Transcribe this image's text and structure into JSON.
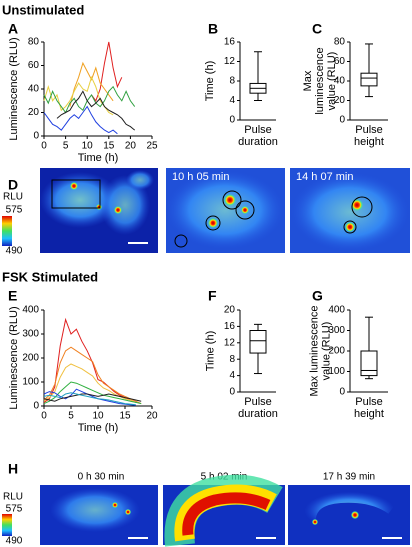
{
  "headers": [
    "Unstimulated",
    "FSK Stimulated"
  ],
  "panel_labels": [
    "A",
    "B",
    "C",
    "D",
    "E",
    "F",
    "G",
    "H"
  ],
  "images": {
    "D": {
      "colorbar": {
        "title": "RLU",
        "max": 575,
        "min": 490
      },
      "timestamps": [
        "10 h 05 min",
        "14 h 07 min"
      ]
    },
    "H": {
      "colorbar": {
        "title": "RLU",
        "max": 575,
        "min": 490
      },
      "timestamps": [
        "0 h 30 min",
        "5 h 02 min",
        "17 h 39 min"
      ]
    }
  },
  "chart_data": [
    {
      "type": "line",
      "x_label": "Time (h)",
      "y_label": "Luminescence (RLU)",
      "x": [
        0,
        1,
        2,
        3,
        4,
        5,
        6,
        7,
        8,
        9,
        10,
        11,
        12,
        13,
        14,
        15,
        16,
        17,
        18,
        19,
        20,
        21,
        22
      ],
      "xlim": [
        0,
        25
      ],
      "xticks": [
        0,
        5,
        10,
        15,
        20,
        25
      ],
      "ylim": [
        0,
        80
      ],
      "yticks": [
        0,
        20,
        40,
        60,
        80
      ],
      "series": [
        {
          "color": "#e02020",
          "values": [
            null,
            null,
            null,
            null,
            null,
            null,
            null,
            null,
            null,
            null,
            null,
            35,
            30,
            40,
            62,
            80,
            58,
            42,
            50,
            null,
            null,
            null,
            null
          ]
        },
        {
          "color": "#f0a020",
          "values": [
            null,
            null,
            null,
            null,
            null,
            null,
            25,
            40,
            50,
            62,
            55,
            48,
            58,
            45,
            40,
            35,
            30,
            null,
            null,
            null,
            null,
            null,
            null
          ]
        },
        {
          "color": "#e8d040",
          "values": [
            30,
            42,
            30,
            35,
            22,
            25,
            30,
            38,
            45,
            40,
            38,
            50,
            42,
            30,
            25,
            20,
            18,
            null,
            null,
            null,
            null,
            null,
            null
          ]
        },
        {
          "color": "#30a040",
          "values": [
            35,
            28,
            38,
            30,
            25,
            20,
            28,
            32,
            25,
            22,
            30,
            35,
            28,
            25,
            30,
            38,
            42,
            35,
            30,
            38,
            30,
            25,
            null
          ]
        },
        {
          "color": "#202020",
          "values": [
            null,
            null,
            null,
            15,
            18,
            20,
            22,
            28,
            32,
            38,
            30,
            25,
            28,
            32,
            25,
            22,
            20,
            18,
            15,
            10,
            8,
            5,
            null
          ]
        },
        {
          "color": "#2040e0",
          "values": [
            20,
            15,
            10,
            8,
            5,
            10,
            15,
            18,
            15,
            20,
            25,
            18,
            12,
            8,
            5,
            3,
            5,
            2,
            null,
            null,
            null,
            null,
            null
          ]
        }
      ]
    },
    {
      "type": "box",
      "y_label": "Time (h)",
      "categories": [
        "Pulse duration"
      ],
      "ylim": [
        0,
        16
      ],
      "yticks": [
        0,
        4,
        8,
        12,
        16
      ],
      "min": [
        4
      ],
      "q1": [
        5.5
      ],
      "median": [
        6.5
      ],
      "q3": [
        7.5
      ],
      "max": [
        14
      ]
    },
    {
      "type": "box",
      "y_label": "Max luminescence value (RLU)",
      "categories": [
        "Pulse height"
      ],
      "ylim": [
        0,
        80
      ],
      "yticks": [
        0,
        20,
        40,
        60,
        80
      ],
      "min": [
        24
      ],
      "q1": [
        35
      ],
      "median": [
        43
      ],
      "q3": [
        48
      ],
      "max": [
        78
      ]
    },
    {
      "type": "line",
      "x_label": "Time (h)",
      "y_label": "Luminescence (RLU)",
      "x": [
        0,
        1,
        2,
        3,
        4,
        5,
        6,
        7,
        8,
        9,
        10,
        11,
        12,
        13,
        14,
        15,
        16,
        17,
        18
      ],
      "xlim": [
        0,
        20
      ],
      "xticks": [
        0,
        5,
        10,
        15,
        20
      ],
      "ylim": [
        0,
        400
      ],
      "yticks": [
        0,
        100,
        200,
        300,
        400
      ],
      "series": [
        {
          "color": "#e02020",
          "values": [
            15,
            30,
            80,
            250,
            360,
            300,
            320,
            270,
            230,
            180,
            110,
            100,
            80,
            60,
            45,
            35,
            25,
            15,
            null
          ]
        },
        {
          "color": "#f08020",
          "values": [
            25,
            45,
            90,
            180,
            230,
            245,
            230,
            215,
            200,
            185,
            130,
            95,
            80,
            65,
            50,
            40,
            30,
            20,
            10
          ]
        },
        {
          "color": "#f0c040",
          "values": [
            20,
            35,
            60,
            120,
            160,
            175,
            165,
            155,
            140,
            125,
            95,
            75,
            65,
            50,
            40,
            30,
            25,
            15,
            null
          ]
        },
        {
          "color": "#30b040",
          "values": [
            10,
            20,
            35,
            60,
            80,
            100,
            95,
            85,
            75,
            65,
            55,
            45,
            40,
            35,
            30,
            25,
            20,
            15,
            10
          ]
        },
        {
          "color": "#2040e0",
          "values": [
            50,
            60,
            55,
            40,
            30,
            45,
            70,
            60,
            50,
            40,
            30,
            25,
            20,
            15,
            10,
            8,
            5,
            3,
            null
          ]
        },
        {
          "color": "#202020",
          "values": [
            30,
            25,
            20,
            30,
            35,
            40,
            45,
            50,
            50,
            45,
            40,
            45,
            50,
            45,
            40,
            35,
            30,
            25,
            20
          ]
        },
        {
          "color": "#20a0c0",
          "values": [
            40,
            45,
            40,
            35,
            50,
            55,
            50,
            45,
            40,
            35,
            30,
            28,
            25,
            20,
            15,
            10,
            8,
            5,
            null
          ]
        }
      ]
    },
    {
      "type": "box",
      "y_label": "Time (h)",
      "categories": [
        "Pulse duration"
      ],
      "ylim": [
        0,
        20
      ],
      "yticks": [
        0,
        4,
        8,
        12,
        16,
        20
      ],
      "min": [
        4.5
      ],
      "q1": [
        9.5
      ],
      "median": [
        12.5
      ],
      "q3": [
        15
      ],
      "max": [
        16.5
      ]
    },
    {
      "type": "box",
      "y_label": "Max luminescence value (RLU)",
      "categories": [
        "Pulse height"
      ],
      "ylim": [
        0,
        400
      ],
      "yticks": [
        0,
        100,
        200,
        300,
        400
      ],
      "min": [
        65
      ],
      "q1": [
        80
      ],
      "median": [
        105
      ],
      "q3": [
        200
      ],
      "max": [
        365
      ]
    }
  ]
}
